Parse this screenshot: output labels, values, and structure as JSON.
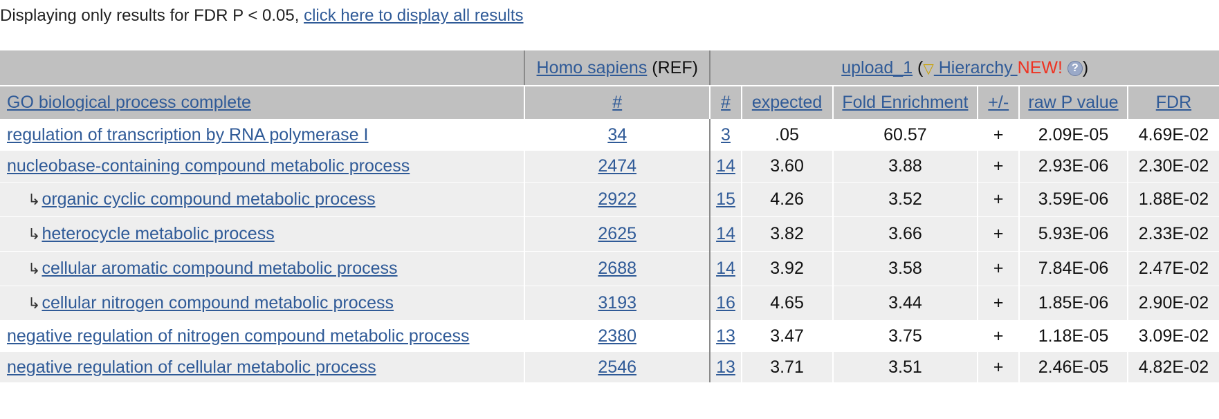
{
  "notice": {
    "text": "Displaying only results for FDR P < 0.05, ",
    "link": "click here to display all results"
  },
  "header": {
    "ref_link": "Homo sapiens",
    "ref_suffix": " (REF)",
    "upload_link": "upload_1",
    "open_paren": " (",
    "hierarchy_icon": "▽",
    "hierarchy_link": " Hierarchy ",
    "new_label": "NEW!",
    "help_icon": "?",
    "close_paren": ")",
    "columns": {
      "term": "GO biological process complete",
      "ref_count": "#",
      "count": "#",
      "expected": "expected",
      "fold": "Fold Enrichment",
      "direction": "+/-",
      "raw_p": "raw P value",
      "fdr": "FDR"
    }
  },
  "rows": [
    {
      "term": "regulation of transcription by RNA polymerase I",
      "ref": "34",
      "count": "3",
      "expected": ".05",
      "fold": "60.57",
      "dir": "+",
      "raw_p": "2.09E-05",
      "fdr": "4.69E-02",
      "child": false,
      "bg": "white"
    },
    {
      "term": "nucleobase-containing compound metabolic process",
      "ref": "2474",
      "count": "14",
      "expected": "3.60",
      "fold": "3.88",
      "dir": "+",
      "raw_p": "2.93E-06",
      "fdr": "2.30E-02",
      "child": false,
      "bg": "grey"
    },
    {
      "term": "organic cyclic compound metabolic process",
      "ref": "2922",
      "count": "15",
      "expected": "4.26",
      "fold": "3.52",
      "dir": "+",
      "raw_p": "3.59E-06",
      "fdr": "1.88E-02",
      "child": true,
      "bg": "grey"
    },
    {
      "term": "heterocycle metabolic process",
      "ref": "2625",
      "count": "14",
      "expected": "3.82",
      "fold": "3.66",
      "dir": "+",
      "raw_p": "5.93E-06",
      "fdr": "2.33E-02",
      "child": true,
      "bg": "grey"
    },
    {
      "term": "cellular aromatic compound metabolic process",
      "ref": "2688",
      "count": "14",
      "expected": "3.92",
      "fold": "3.58",
      "dir": "+",
      "raw_p": "7.84E-06",
      "fdr": "2.47E-02",
      "child": true,
      "bg": "grey"
    },
    {
      "term": "cellular nitrogen compound metabolic process",
      "ref": "3193",
      "count": "16",
      "expected": "4.65",
      "fold": "3.44",
      "dir": "+",
      "raw_p": "1.85E-06",
      "fdr": "2.90E-02",
      "child": true,
      "bg": "grey"
    },
    {
      "term": "negative regulation of nitrogen compound metabolic process",
      "ref": "2380",
      "count": "13",
      "expected": "3.47",
      "fold": "3.75",
      "dir": "+",
      "raw_p": "1.18E-05",
      "fdr": "3.09E-02",
      "child": false,
      "bg": "white"
    },
    {
      "term": "negative regulation of cellular metabolic process",
      "ref": "2546",
      "count": "13",
      "expected": "3.71",
      "fold": "3.51",
      "dir": "+",
      "raw_p": "2.46E-05",
      "fdr": "4.82E-02",
      "child": false,
      "bg": "grey"
    }
  ],
  "child_arrow_icon": "↳",
  "colors": {
    "header_bg": "#c0c0c0",
    "row_grey": "#eeeeee",
    "link": "#2f5a97",
    "new": "#ee3322"
  }
}
